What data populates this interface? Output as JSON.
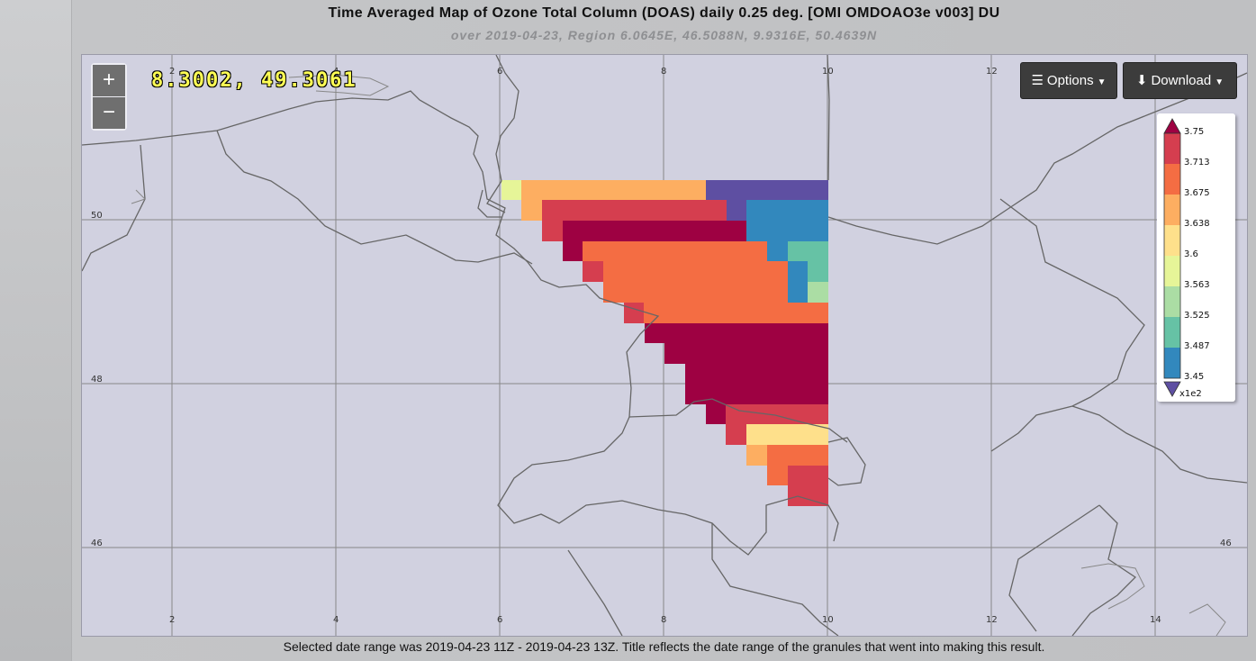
{
  "title": "Time Averaged Map of Ozone Total Column (DOAS) daily 0.25 deg. [OMI OMDOAO3e v003] DU",
  "subtitle": "over 2019-04-23, Region 6.0645E, 46.5088N, 9.9316E, 50.4639N",
  "footer": "Selected date range was 2019-04-23 11Z - 2019-04-23 13Z. Title reflects the date range of the granules that went into making this result.",
  "map": {
    "zoom_in_label": "+",
    "zoom_out_label": "−",
    "cursor_coordinate": "8.3002, 49.3061",
    "lon_ticks": [
      "2",
      "4",
      "6",
      "8",
      "10",
      "12",
      "14"
    ],
    "lat_ticks": [
      "50",
      "48",
      "46"
    ],
    "background_color": "#d1d1e0"
  },
  "toolbar": {
    "options_label": "Options",
    "download_label": "Download"
  },
  "legend": {
    "values": [
      "3.75",
      "3.713",
      "3.675",
      "3.638",
      "3.6",
      "3.563",
      "3.525",
      "3.487",
      "3.45"
    ],
    "multiplier": "x1e2",
    "colors": [
      "#9e0142",
      "#d53e4f",
      "#f46d43",
      "#fdae61",
      "#fee08b",
      "#e6f598",
      "#abdda4",
      "#66c2a5",
      "#3288bd",
      "#5e4fa2"
    ]
  }
}
